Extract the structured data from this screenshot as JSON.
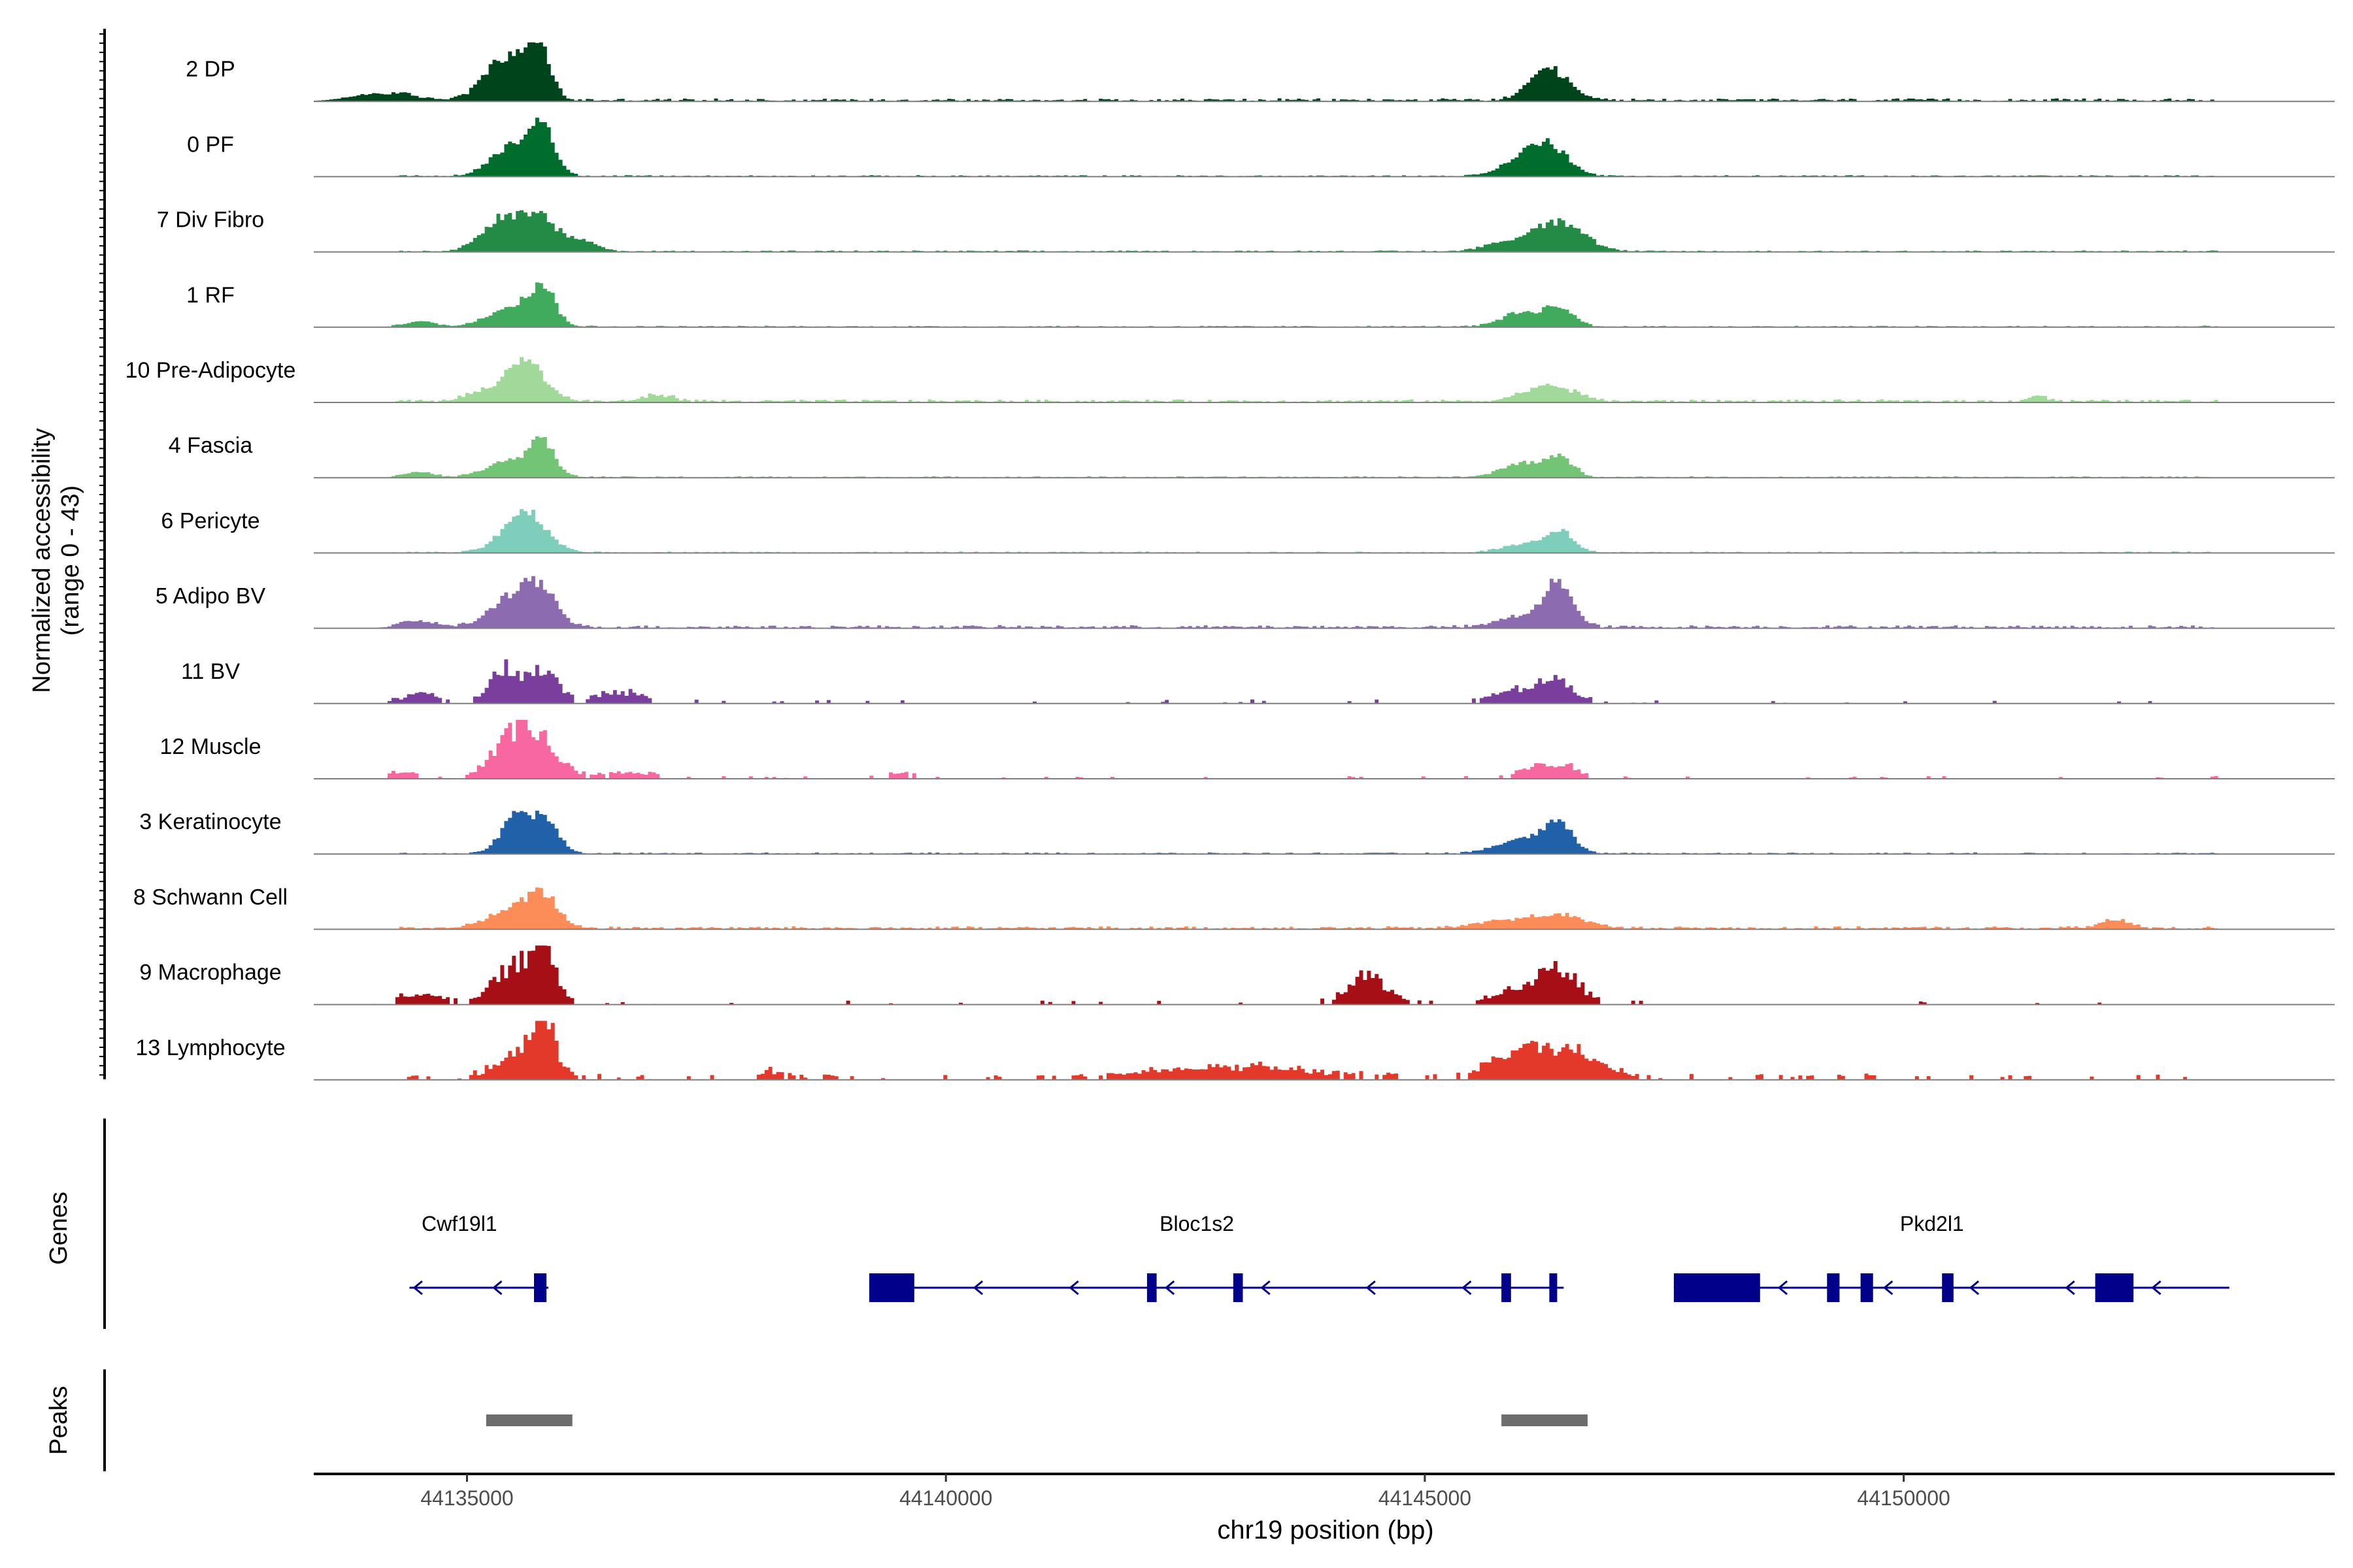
{
  "chart_data": {
    "type": "area",
    "title": "",
    "ylabel_line1": "Normalized accessibility",
    "ylabel_line2": "(range 0 - 43)",
    "xlabel": "chr19 position (bp)",
    "xlim": [
      44133400,
      44154500
    ],
    "ylim": [
      0,
      43
    ],
    "xticks": [
      44135000,
      44140000,
      44145000,
      44150000
    ],
    "xtick_labels": [
      "44135000",
      "44140000",
      "44145000",
      "44150000"
    ],
    "tracks": [
      {
        "name": "2 DP",
        "color": "#00441b",
        "peaks": [
          [
            44135400,
            30,
            220
          ],
          [
            44135750,
            36,
            120
          ],
          [
            44146300,
            22,
            200
          ],
          [
            44134100,
            6,
            300
          ]
        ],
        "noise": 2,
        "patchy": false
      },
      {
        "name": "0 PF",
        "color": "#006d2c",
        "peaks": [
          [
            44135500,
            24,
            220
          ],
          [
            44135800,
            32,
            120
          ],
          [
            44146300,
            20,
            200
          ],
          [
            44146000,
            10,
            220
          ]
        ],
        "noise": 1,
        "patchy": false
      },
      {
        "name": "7 Div Fibro",
        "color": "#238b45",
        "peaks": [
          [
            44135400,
            26,
            220
          ],
          [
            44135800,
            20,
            160
          ],
          [
            44136200,
            8,
            150
          ],
          [
            44146300,
            18,
            220
          ],
          [
            44146600,
            8,
            200
          ],
          [
            44145800,
            6,
            200
          ]
        ],
        "noise": 1,
        "patchy": false
      },
      {
        "name": "1 RF",
        "color": "#41ab5d",
        "peaks": [
          [
            44135500,
            16,
            250
          ],
          [
            44135800,
            24,
            120
          ],
          [
            44146000,
            10,
            200
          ],
          [
            44146400,
            14,
            150
          ],
          [
            44134500,
            4,
            150
          ]
        ],
        "noise": 1,
        "patchy": false
      },
      {
        "name": "10 Pre-Adipocyte",
        "color": "#a1d99b",
        "peaks": [
          [
            44135600,
            30,
            200
          ],
          [
            44146300,
            12,
            250
          ],
          [
            44135100,
            6,
            150
          ],
          [
            44137000,
            5,
            150
          ],
          [
            44151400,
            4,
            100
          ]
        ],
        "noise": 2,
        "patchy": false
      },
      {
        "name": "4 Fascia",
        "color": "#74c476",
        "peaks": [
          [
            44135500,
            14,
            250
          ],
          [
            44135800,
            20,
            120
          ],
          [
            44146000,
            10,
            200
          ],
          [
            44146400,
            14,
            150
          ],
          [
            44134500,
            4,
            150
          ]
        ],
        "noise": 1,
        "patchy": false
      },
      {
        "name": "6 Pericyte",
        "color": "#7fcdbb",
        "peaks": [
          [
            44135600,
            30,
            220
          ],
          [
            44146400,
            16,
            150
          ],
          [
            44146000,
            6,
            200
          ]
        ],
        "noise": 1,
        "patchy": false
      },
      {
        "name": "5 Adipo BV",
        "color": "#8c6bb1",
        "peaks": [
          [
            44135500,
            24,
            230
          ],
          [
            44135800,
            20,
            150
          ],
          [
            44146400,
            32,
            150
          ],
          [
            44146000,
            8,
            220
          ],
          [
            44134500,
            4,
            200
          ]
        ],
        "noise": 2,
        "patchy": false
      },
      {
        "name": "11 BV",
        "color": "#7a3f9d",
        "peaks": [
          [
            44135400,
            26,
            150
          ],
          [
            44135800,
            24,
            150
          ],
          [
            44146000,
            10,
            250
          ],
          [
            44146400,
            14,
            150
          ],
          [
            44136600,
            8,
            200
          ],
          [
            44134500,
            6,
            200
          ]
        ],
        "noise": 3,
        "patchy": true
      },
      {
        "name": "12 Muscle",
        "color": "#f768a1",
        "peaks": [
          [
            44135600,
            40,
            260
          ],
          [
            44146300,
            12,
            250
          ],
          [
            44134300,
            5,
            150
          ],
          [
            44136700,
            4,
            250
          ],
          [
            44139500,
            4,
            150
          ]
        ],
        "noise": 2,
        "patchy": true
      },
      {
        "name": "3 Keratinocyte",
        "color": "#2161a9",
        "peaks": [
          [
            44135500,
            24,
            150
          ],
          [
            44135800,
            24,
            150
          ],
          [
            44146000,
            10,
            250
          ],
          [
            44146400,
            20,
            150
          ]
        ],
        "noise": 1,
        "patchy": false
      },
      {
        "name": "8 Schwann Cell",
        "color": "#fc8d59",
        "peaks": [
          [
            44135500,
            14,
            250
          ],
          [
            44135800,
            20,
            150
          ],
          [
            44145800,
            6,
            250
          ],
          [
            44146400,
            10,
            250
          ],
          [
            44152200,
            6,
            150
          ]
        ],
        "noise": 2,
        "patchy": false
      },
      {
        "name": "9 Macrophage",
        "color": "#a50f15",
        "peaks": [
          [
            44135500,
            26,
            220
          ],
          [
            44135800,
            36,
            120
          ],
          [
            44144400,
            20,
            200
          ],
          [
            44146400,
            24,
            200
          ],
          [
            44146000,
            10,
            250
          ],
          [
            44134500,
            6,
            200
          ]
        ],
        "noise": 3,
        "patchy": true
      },
      {
        "name": "13 Lymphocyte",
        "color": "#e3392b",
        "peaks": [
          [
            44135600,
            22,
            250
          ],
          [
            44135800,
            34,
            100
          ],
          [
            44146200,
            20,
            300
          ],
          [
            44146700,
            14,
            250
          ],
          [
            44145800,
            10,
            200
          ],
          [
            44143000,
            8,
            800
          ],
          [
            44138200,
            5,
            100
          ]
        ],
        "noise": 4,
        "patchy": true
      }
    ],
    "genes_label": "Genes",
    "peaks_label": "Peaks",
    "genes": [
      {
        "name": "Cwf19l1",
        "start": 44134400,
        "end": 44135850,
        "exons": [
          [
            44135700,
            44135830
          ]
        ],
        "arrows": [
          44134450,
          44135280
        ]
      },
      {
        "name": "Bloc1s2",
        "start": 44139200,
        "end": 44146450,
        "exons": [
          [
            44139200,
            44139670
          ],
          [
            44142100,
            44142200
          ],
          [
            44143000,
            44143100
          ],
          [
            44145800,
            44145900
          ],
          [
            44146300,
            44146380
          ]
        ],
        "arrows": [
          44140300,
          44141300,
          44142300,
          44143300,
          44144400,
          44145400
        ]
      },
      {
        "name": "Pkd2l1",
        "start": 44147600,
        "end": 44153400,
        "exons": [
          [
            44147600,
            44148500
          ],
          [
            44149200,
            44149330
          ],
          [
            44149550,
            44149680
          ],
          [
            44150400,
            44150520
          ],
          [
            44152000,
            44152400
          ]
        ],
        "arrows": [
          44148700,
          44149800,
          44150700,
          44151700,
          44152600
        ]
      }
    ],
    "peaks": [
      [
        44135200,
        44136100
      ],
      [
        44145800,
        44146700
      ]
    ]
  }
}
